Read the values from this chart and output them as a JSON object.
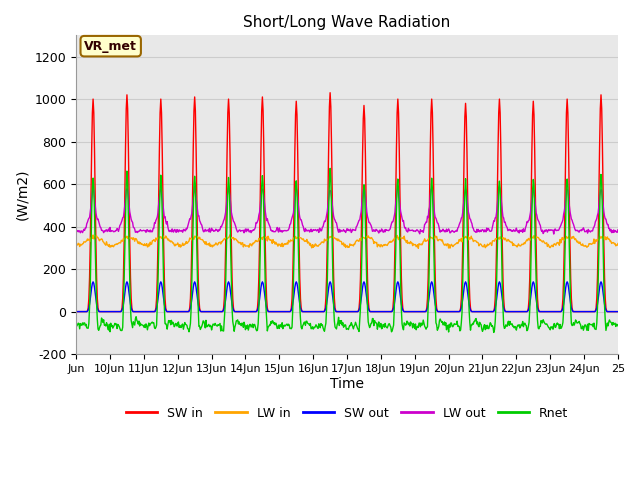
{
  "title": "Short/Long Wave Radiation",
  "xlabel": "Time",
  "ylabel": "(W/m2)",
  "ylim": [
    -200,
    1300
  ],
  "yticks": [
    -200,
    0,
    200,
    400,
    600,
    800,
    1000,
    1200
  ],
  "xlim_days": [
    9,
    25
  ],
  "xtick_labels": [
    "Jun",
    "10Jun",
    "11Jun",
    "12Jun",
    "13Jun",
    "14Jun",
    "15Jun",
    "16Jun",
    "17Jun",
    "18Jun",
    "19Jun",
    "20Jun",
    "21Jun",
    "22Jun",
    "23Jun",
    "24Jun",
    "25"
  ],
  "annotation_text": "VR_met",
  "annotation_facecolor": "#FFFFCC",
  "annotation_edgecolor": "#996600",
  "colors": {
    "SW_in": "#FF0000",
    "LW_in": "#FFA500",
    "SW_out": "#0000FF",
    "LW_out": "#CC00CC",
    "Rnet": "#00CC00"
  },
  "legend_labels": [
    "SW in",
    "LW in",
    "SW out",
    "LW out",
    "Rnet"
  ],
  "grid_color": "#CCCCCC",
  "bg_plot_color": "#E8E8E8",
  "bg_fig_color": "#FFFFFF",
  "linewidth": 1.0
}
